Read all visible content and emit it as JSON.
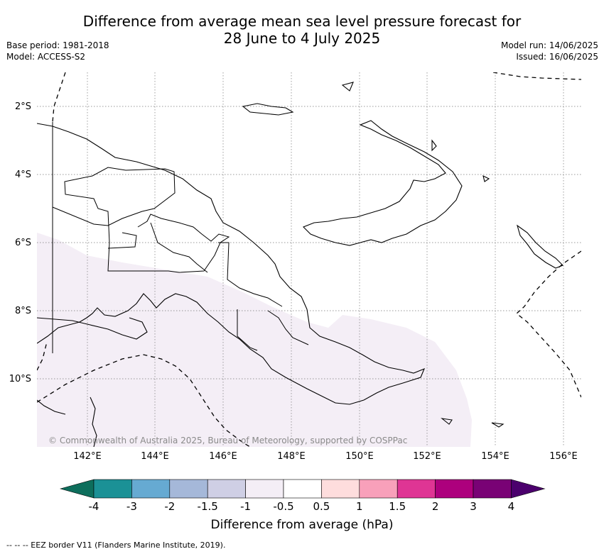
{
  "title": {
    "line1": "Difference from average mean sea level pressure forecast for",
    "line2": "28 June to 4 July 2025"
  },
  "meta_left": {
    "base_period": "Base period: 1981-2018",
    "model": "Model: ACCESS-S2"
  },
  "meta_right": {
    "model_run": "Model run: 14/06/2025",
    "issued": "Issued: 16/06/2025"
  },
  "map": {
    "lat_labels": [
      "2°S",
      "4°S",
      "6°S",
      "8°S",
      "10°S"
    ],
    "lon_labels": [
      "142°E",
      "144°E",
      "146°E",
      "148°E",
      "150°E",
      "152°E",
      "154°E",
      "156°E"
    ],
    "copyright": "© Commonwealth of Australia 2025, Bureau of Meteorology, supported by COSPPac",
    "land_color": "#ffffff",
    "shade_color": "#f4eef6",
    "forecast_category": "-1 to -0.5"
  },
  "colorbar": {
    "label": "Difference from average (hPa)",
    "ticks": [
      "-4",
      "-3",
      "-2",
      "-1.5",
      "-1",
      "-0.5",
      "0.5",
      "1",
      "1.5",
      "2",
      "3",
      "4"
    ],
    "colors": [
      "#0d6e5c",
      "#1b9196",
      "#66aad2",
      "#a5b8d9",
      "#cfcfe5",
      "#f4eef6",
      "#ffffff",
      "#fedddd",
      "#f8a0ba",
      "#df3594",
      "#ad007d",
      "#790275",
      "#4b006d"
    ]
  },
  "legend": {
    "eez": "--  --  -- EEZ border V11 (Flanders Marine Institute, 2019)."
  }
}
